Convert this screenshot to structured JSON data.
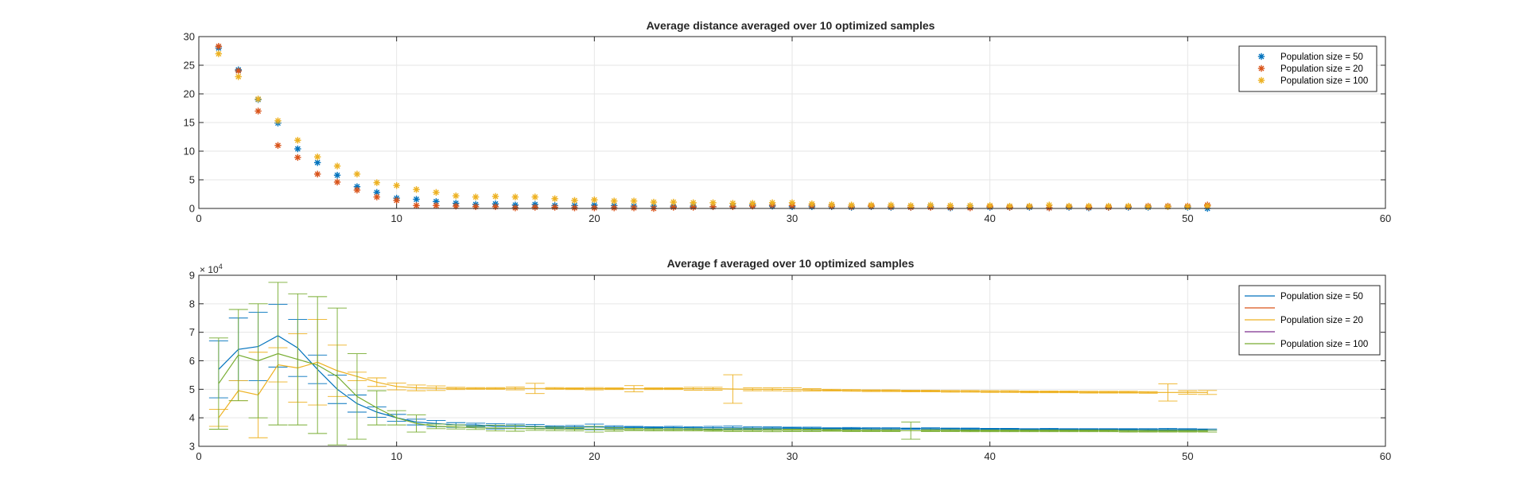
{
  "chart_data": [
    {
      "type": "scatter",
      "title": "Average distance averaged over 10 optimized samples",
      "xlim": [
        0,
        60
      ],
      "ylim": [
        0,
        30
      ],
      "xticks": [
        0,
        10,
        20,
        30,
        40,
        50,
        60
      ],
      "yticks": [
        0,
        5,
        10,
        15,
        20,
        25,
        30
      ],
      "grid": true,
      "legend_location": "top-right",
      "marker": "asterisk",
      "series": [
        {
          "name": "Population size = 50",
          "color": "#0072BD",
          "x": [
            1,
            2,
            3,
            4,
            5,
            6,
            7,
            8,
            9,
            10,
            11,
            12,
            13,
            14,
            15,
            16,
            17,
            18,
            19,
            20,
            21,
            22,
            23,
            24,
            25,
            26,
            27,
            28,
            29,
            30,
            31,
            32,
            33,
            34,
            35,
            36,
            37,
            38,
            39,
            40,
            41,
            42,
            43,
            44,
            45,
            46,
            47,
            48,
            49,
            50,
            51
          ],
          "y": [
            28.0,
            24.2,
            19.0,
            14.9,
            10.4,
            8.0,
            5.8,
            3.8,
            2.8,
            1.8,
            1.6,
            1.2,
            0.9,
            0.7,
            0.8,
            0.6,
            0.7,
            0.5,
            0.5,
            0.6,
            0.5,
            0.4,
            0.4,
            0.4,
            0.4,
            0.3,
            0.4,
            0.6,
            0.4,
            0.3,
            0.3,
            0.3,
            0.2,
            0.3,
            0.2,
            0.2,
            0.3,
            0.1,
            0.2,
            0.2,
            0.2,
            0.2,
            0.1,
            0.2,
            0.1,
            0.2,
            0.2,
            0.2,
            0.3,
            0.2,
            0.0
          ]
        },
        {
          "name": "Population size = 20",
          "color": "#D95319",
          "x": [
            1,
            2,
            3,
            4,
            5,
            6,
            7,
            8,
            9,
            10,
            11,
            12,
            13,
            14,
            15,
            16,
            17,
            18,
            19,
            20,
            21,
            22,
            23,
            24,
            25,
            26,
            27,
            28,
            29,
            30,
            31,
            32,
            33,
            34,
            35,
            36,
            37,
            38,
            39,
            40,
            41,
            42,
            43,
            44,
            45,
            46,
            47,
            48,
            49,
            50,
            51
          ],
          "y": [
            28.3,
            24.0,
            17.0,
            11.0,
            8.9,
            6.0,
            4.6,
            3.2,
            2.0,
            1.4,
            0.5,
            0.5,
            0.4,
            0.3,
            0.3,
            0.1,
            0.2,
            0.2,
            0.1,
            0.1,
            0.1,
            0.1,
            0.0,
            0.2,
            0.2,
            0.3,
            0.3,
            0.4,
            0.6,
            0.5,
            0.5,
            0.4,
            0.3,
            0.4,
            0.3,
            0.2,
            0.2,
            0.2,
            0.1,
            0.3,
            0.2,
            0.3,
            0.1,
            0.3,
            0.2,
            0.2,
            0.3,
            0.4,
            0.4,
            0.4,
            0.6
          ]
        },
        {
          "name": "Population size = 100",
          "color": "#EDB120",
          "x": [
            1,
            2,
            3,
            4,
            5,
            6,
            7,
            8,
            9,
            10,
            11,
            12,
            13,
            14,
            15,
            16,
            17,
            18,
            19,
            20,
            21,
            22,
            23,
            24,
            25,
            26,
            27,
            28,
            29,
            30,
            31,
            32,
            33,
            34,
            35,
            36,
            37,
            38,
            39,
            40,
            41,
            42,
            43,
            44,
            45,
            46,
            47,
            48,
            49,
            50,
            51
          ],
          "y": [
            27.0,
            23.0,
            19.1,
            15.3,
            11.9,
            9.0,
            7.4,
            6.0,
            4.5,
            4.0,
            3.3,
            2.8,
            2.2,
            2.0,
            2.1,
            2.0,
            2.0,
            1.7,
            1.4,
            1.5,
            1.3,
            1.3,
            1.1,
            1.1,
            1.0,
            1.0,
            0.9,
            0.9,
            1.0,
            1.0,
            0.8,
            0.7,
            0.6,
            0.6,
            0.6,
            0.5,
            0.6,
            0.5,
            0.5,
            0.5,
            0.4,
            0.4,
            0.6,
            0.4,
            0.4,
            0.4,
            0.4,
            0.3,
            0.3,
            0.3,
            0.4
          ]
        }
      ]
    },
    {
      "type": "line",
      "title": "Average f averaged over 10 optimized samples",
      "y_exponent_label": "× 10",
      "y_exponent_power": "4",
      "xlim": [
        0,
        60
      ],
      "ylim": [
        30000,
        90000
      ],
      "xticks": [
        0,
        10,
        20,
        30,
        40,
        50,
        60
      ],
      "yticks": [
        3,
        4,
        5,
        6,
        7,
        8,
        9
      ],
      "y_tick_scale": 10000,
      "grid": true,
      "legend_location": "top-right",
      "legend_entries": [
        {
          "label": "Population size = 50",
          "color": "#0072BD"
        },
        {
          "label": "",
          "color": "#D95319"
        },
        {
          "label": "Population size = 20",
          "color": "#EDB120"
        },
        {
          "label": "",
          "color": "#7E2F8E"
        },
        {
          "label": "Population size = 100",
          "color": "#77AC30"
        }
      ],
      "series": [
        {
          "name": "Population size = 50",
          "color": "#0072BD",
          "x": [
            1,
            2,
            3,
            4,
            5,
            6,
            7,
            8,
            9,
            10,
            11,
            12,
            13,
            14,
            15,
            16,
            17,
            18,
            19,
            20,
            21,
            22,
            23,
            24,
            25,
            26,
            27,
            28,
            29,
            30,
            31,
            32,
            33,
            34,
            35,
            36,
            37,
            38,
            39,
            40,
            41,
            42,
            43,
            44,
            45,
            46,
            47,
            48,
            49,
            50,
            51
          ],
          "y": [
            57000,
            64000,
            65000,
            68800,
            64500,
            57000,
            50000,
            45000,
            42000,
            40000,
            38500,
            38000,
            37500,
            37500,
            37000,
            37000,
            37000,
            36800,
            36800,
            36800,
            36700,
            36700,
            36600,
            36600,
            36500,
            36500,
            36500,
            36400,
            36400,
            36400,
            36300,
            36300,
            36300,
            36200,
            36200,
            36200,
            36200,
            36100,
            36100,
            36100,
            36100,
            36000,
            36000,
            36000,
            36000,
            36000,
            36000,
            35900,
            35900,
            35900,
            35900
          ],
          "err": [
            10000,
            11000,
            12000,
            11000,
            10000,
            5000,
            5000,
            3000,
            1800,
            1200,
            1000,
            1100,
            800,
            600,
            900,
            800,
            700,
            400,
            500,
            1000,
            500,
            300,
            300,
            400,
            400,
            500,
            600,
            500,
            400,
            300,
            400,
            200,
            300,
            300,
            300,
            200,
            300,
            300,
            300,
            200,
            200,
            200,
            300,
            200,
            200,
            200,
            200,
            300,
            400,
            300,
            200
          ]
        },
        {
          "name": "Population size = 20",
          "color": "#EDB120",
          "x": [
            1,
            2,
            3,
            4,
            5,
            6,
            7,
            8,
            9,
            10,
            11,
            12,
            13,
            14,
            15,
            16,
            17,
            18,
            19,
            20,
            21,
            22,
            23,
            24,
            25,
            26,
            27,
            28,
            29,
            30,
            31,
            32,
            33,
            34,
            35,
            36,
            37,
            38,
            39,
            40,
            41,
            42,
            43,
            44,
            45,
            46,
            47,
            48,
            49,
            50,
            51
          ],
          "y": [
            40000,
            49500,
            48000,
            58600,
            57500,
            59500,
            56500,
            54500,
            52500,
            51000,
            50500,
            50400,
            50300,
            50300,
            50300,
            50300,
            50300,
            50300,
            50200,
            50200,
            50200,
            50200,
            50200,
            50200,
            50200,
            50200,
            50100,
            50000,
            50000,
            49900,
            49800,
            49700,
            49600,
            49500,
            49500,
            49400,
            49400,
            49300,
            49300,
            49200,
            49200,
            49100,
            49100,
            49100,
            49000,
            49000,
            49000,
            48900,
            48900,
            48900,
            48900
          ],
          "err": [
            3000,
            3500,
            15000,
            6000,
            12000,
            15000,
            9000,
            1500,
            1500,
            1200,
            1000,
            800,
            400,
            300,
            300,
            500,
            1800,
            300,
            300,
            400,
            300,
            1100,
            300,
            300,
            500,
            500,
            5000,
            500,
            500,
            600,
            400,
            300,
            300,
            300,
            300,
            300,
            300,
            300,
            300,
            300,
            300,
            300,
            300,
            300,
            300,
            300,
            300,
            300,
            3000,
            600,
            700
          ]
        },
        {
          "name": "Population size = 100",
          "color": "#77AC30",
          "x": [
            1,
            2,
            3,
            4,
            5,
            6,
            7,
            8,
            9,
            10,
            11,
            12,
            13,
            14,
            15,
            16,
            17,
            18,
            19,
            20,
            21,
            22,
            23,
            24,
            25,
            26,
            27,
            28,
            29,
            30,
            31,
            32,
            33,
            34,
            35,
            36,
            37,
            38,
            39,
            40,
            41,
            42,
            43,
            44,
            45,
            46,
            47,
            48,
            49,
            50,
            51
          ],
          "y": [
            52000,
            62000,
            60000,
            62500,
            60500,
            58500,
            54500,
            47500,
            43500,
            40000,
            38000,
            37000,
            36800,
            36500,
            36400,
            36300,
            36200,
            36100,
            36000,
            36000,
            35900,
            35900,
            35800,
            35800,
            35800,
            35700,
            35700,
            35700,
            35600,
            35600,
            35600,
            35600,
            35500,
            35500,
            35500,
            35500,
            35500,
            35500,
            35400,
            35400,
            35400,
            35400,
            35400,
            35400,
            35400,
            35400,
            35300,
            35300,
            35300,
            35300,
            35300
          ],
          "err": [
            16000,
            16000,
            20000,
            25000,
            23000,
            24000,
            24000,
            15000,
            6000,
            2500,
            3000,
            800,
            700,
            600,
            1000,
            1000,
            600,
            600,
            600,
            1000,
            600,
            400,
            400,
            400,
            400,
            400,
            500,
            500,
            500,
            400,
            400,
            300,
            300,
            300,
            300,
            3000,
            300,
            300,
            300,
            300,
            300,
            300,
            300,
            300,
            300,
            300,
            300,
            300,
            300,
            300,
            300
          ]
        }
      ]
    }
  ]
}
